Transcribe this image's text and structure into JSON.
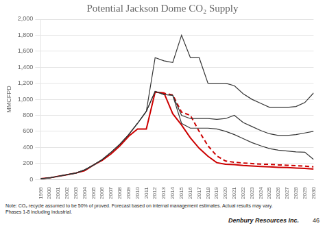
{
  "chart_data": {
    "type": "line",
    "title": "Potential Jackson Dome CO₂ Supply",
    "y_label": "MMCFPD",
    "x": [
      1999,
      2000,
      2001,
      2002,
      2003,
      2004,
      2005,
      2006,
      2007,
      2008,
      2009,
      2010,
      2011,
      2012,
      2013,
      2014,
      2015,
      2016,
      2017,
      2018,
      2019,
      2020,
      2021,
      2022,
      2023,
      2024,
      2025,
      2026,
      2027,
      2028,
      2029,
      2030
    ],
    "xlim": [
      1999,
      2030
    ],
    "xticks": [
      1999,
      2000,
      2001,
      2002,
      2003,
      2004,
      2005,
      2006,
      2007,
      2008,
      2009,
      2010,
      2011,
      2012,
      2013,
      2014,
      2015,
      2016,
      2017,
      2018,
      2019,
      2020,
      2021,
      2022,
      2023,
      2024,
      2025,
      2026,
      2027,
      2028,
      2029,
      2030
    ],
    "ylim": [
      0,
      2000
    ],
    "yticks": [
      0,
      200,
      400,
      600,
      800,
      {
        "value": 1000,
        "label": "1,000"
      },
      {
        "value": 1200,
        "label": "1,200"
      },
      {
        "value": 1400,
        "label": "1,400"
      },
      {
        "value": 1600,
        "label": "1,600"
      },
      {
        "value": 1800,
        "label": "1,800"
      },
      {
        "value": 2000,
        "label": "2,000"
      }
    ],
    "grid": true,
    "series": [
      {
        "color": "#353535",
        "line_style": "solid",
        "values": [
          10,
          20,
          40,
          60,
          80,
          120,
          180,
          250,
          340,
          440,
          560,
          700,
          850,
          1520,
          1480,
          1460,
          1800,
          1520,
          1520,
          1200,
          1200,
          1200,
          1170,
          1070,
          1000,
          950,
          900,
          900,
          900,
          910,
          960,
          1080
        ]
      },
      {
        "color": "#353535",
        "line_style": "solid",
        "values": [
          10,
          20,
          40,
          60,
          80,
          120,
          180,
          250,
          340,
          440,
          560,
          700,
          850,
          1100,
          1060,
          1050,
          800,
          760,
          760,
          760,
          750,
          760,
          800,
          710,
          660,
          610,
          570,
          550,
          550,
          560,
          580,
          600
        ]
      },
      {
        "color": "#353535",
        "line_style": "solid",
        "values": [
          10,
          20,
          40,
          60,
          80,
          120,
          180,
          250,
          340,
          440,
          560,
          700,
          850,
          1100,
          1060,
          1050,
          700,
          640,
          640,
          640,
          630,
          600,
          560,
          510,
          460,
          420,
          385,
          365,
          355,
          345,
          340,
          250
        ]
      },
      {
        "color": "#cc0000",
        "line_style": "solid",
        "values": [
          10,
          20,
          40,
          60,
          80,
          110,
          180,
          240,
          320,
          420,
          540,
          630,
          630,
          1090,
          1080,
          820,
          680,
          520,
          390,
          290,
          210,
          190,
          185,
          175,
          168,
          162,
          158,
          152,
          148,
          143,
          138,
          130
        ]
      },
      {
        "color": "#cc0000",
        "line_style": "dashed",
        "values": [
          null,
          null,
          null,
          null,
          null,
          null,
          null,
          null,
          null,
          null,
          null,
          null,
          null,
          1090,
          1075,
          1055,
          840,
          800,
          600,
          420,
          295,
          230,
          215,
          205,
          198,
          192,
          188,
          182,
          177,
          172,
          166,
          158
        ]
      }
    ],
    "annotations": [
      "Note: CO₂ recycle assumed to be 50% of proved.  Forecast based on internal management estimates.  Actual results may vary.",
      "Phases 1-8 including industrial.",
      "Denbury Resources Inc.",
      "46"
    ]
  }
}
